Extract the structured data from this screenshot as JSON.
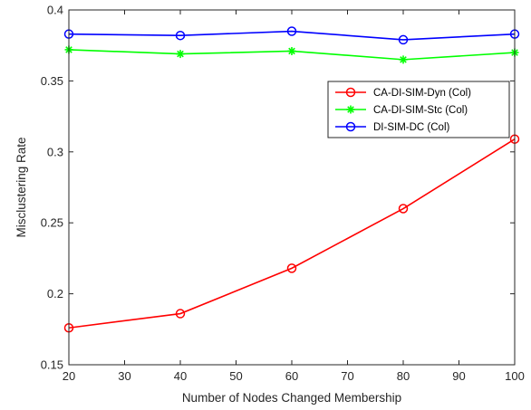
{
  "chart_data": {
    "type": "line",
    "xlabel": "Number of Nodes Changed Membership",
    "ylabel": "Misclustering Rate",
    "x": [
      20,
      40,
      60,
      80,
      100
    ],
    "xlim": [
      20,
      100
    ],
    "ylim": [
      0.15,
      0.4
    ],
    "xticks": [
      20,
      30,
      40,
      50,
      60,
      70,
      80,
      90,
      100
    ],
    "yticks": [
      0.15,
      0.2,
      0.25,
      0.3,
      0.35,
      0.4
    ],
    "xtick_labels": [
      "20",
      "30",
      "40",
      "50",
      "60",
      "70",
      "80",
      "90",
      "100"
    ],
    "ytick_labels": [
      "0.15",
      "0.2",
      "0.25",
      "0.3",
      "0.35",
      "0.4"
    ],
    "grid": false,
    "legend_position": "upper-right",
    "series": [
      {
        "name": "CA-DI-SIM-Dyn (Col)",
        "color": "#ff0000",
        "marker": "circle",
        "values": [
          0.176,
          0.186,
          0.218,
          0.26,
          0.309
        ]
      },
      {
        "name": "CA-DI-SIM-Stc (Col)",
        "color": "#00ff00",
        "marker": "asterisk",
        "values": [
          0.372,
          0.369,
          0.371,
          0.365,
          0.37
        ]
      },
      {
        "name": "DI-SIM-DC (Col)",
        "color": "#0000ff",
        "marker": "circle",
        "values": [
          0.383,
          0.382,
          0.385,
          0.379,
          0.383
        ]
      }
    ]
  }
}
